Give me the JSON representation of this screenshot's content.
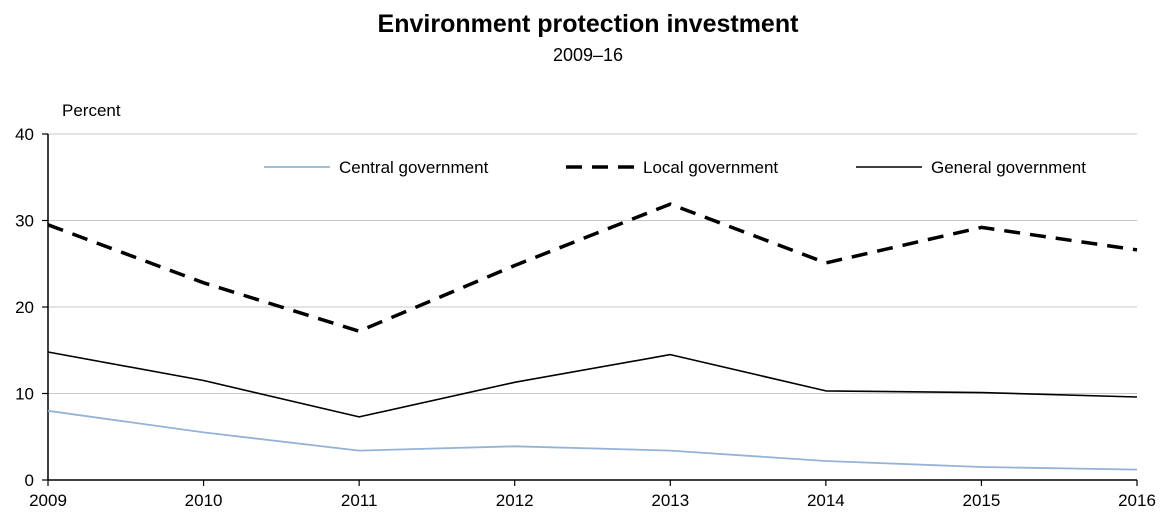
{
  "chart_data": {
    "type": "line",
    "title": "Environment protection investment",
    "subtitle": "2009–16",
    "ylabel": "Percent",
    "xlabel": "",
    "x": [
      "2009",
      "2010",
      "2011",
      "2012",
      "2013",
      "2014",
      "2015",
      "2016"
    ],
    "ylim": [
      0,
      40
    ],
    "yticks": [
      0,
      10,
      20,
      30,
      40
    ],
    "grid": true,
    "legend_position": "top",
    "series": [
      {
        "name": "Central government",
        "values": [
          8.0,
          5.5,
          3.4,
          3.9,
          3.4,
          2.2,
          1.5,
          1.2
        ],
        "color": "#95b3d7",
        "style": "solid"
      },
      {
        "name": "Local government",
        "values": [
          29.5,
          22.8,
          17.2,
          24.8,
          31.9,
          25.1,
          29.2,
          26.6
        ],
        "color": "#000000",
        "style": "dashed"
      },
      {
        "name": "General government",
        "values": [
          14.8,
          11.5,
          7.3,
          11.3,
          14.5,
          10.3,
          10.1,
          9.6
        ],
        "color": "#000000",
        "style": "solid"
      }
    ]
  }
}
